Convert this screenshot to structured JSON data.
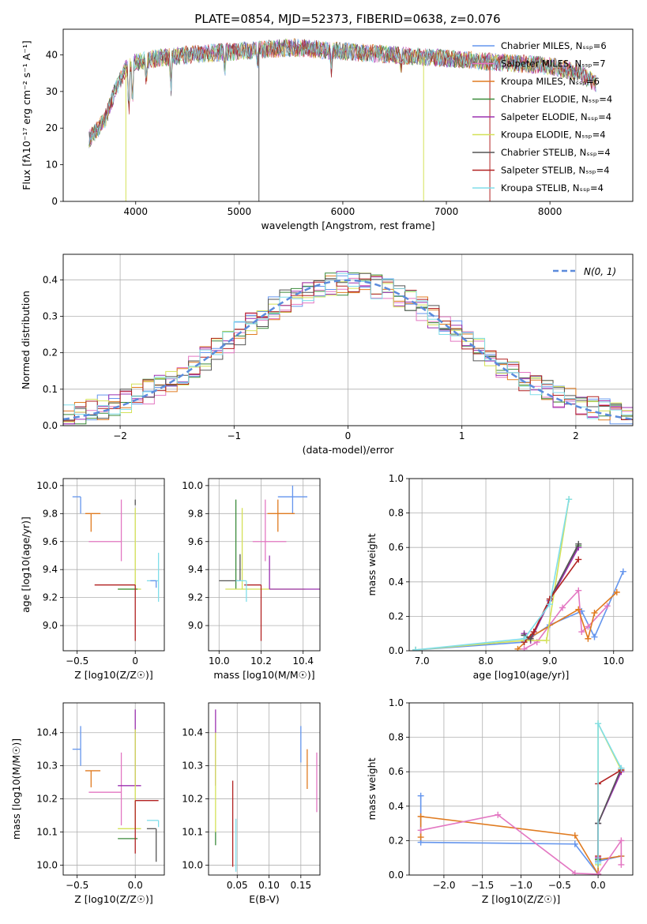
{
  "figure_title": "PLATE=0854, MJD=52373, FIBERID=0638, z=0.076",
  "series_colors": {
    "Chabrier MILES": "#6495ed",
    "Salpeter MILES": "#e377c2",
    "Kroupa MILES": "#e07b20",
    "Chabrier ELODIE": "#3a8a3a",
    "Salpeter ELODIE": "#9b30b0",
    "Kroupa ELODIE": "#d4e157",
    "Chabrier STELIB": "#555555",
    "Salpeter STELIB": "#b22222",
    "Kroupa STELIB": "#80deea"
  },
  "chart_data": [
    {
      "id": "spectrum",
      "type": "line",
      "xlabel": "wavelength [Angstrom, rest frame]",
      "ylabel": "Flux [fλ10⁻¹⁷ erg cm⁻² s⁻¹ A⁻¹]",
      "xlim": [
        3300,
        8800
      ],
      "ylim": [
        0,
        47
      ],
      "xticks": [
        4000,
        5000,
        6000,
        7000,
        8000
      ],
      "yticks": [
        0,
        10,
        20,
        30,
        40
      ],
      "grid": false,
      "legend_position": "top-right",
      "continuum": [
        [
          3550,
          17
        ],
        [
          3700,
          22
        ],
        [
          3800,
          30
        ],
        [
          3900,
          36
        ],
        [
          4000,
          38
        ],
        [
          4200,
          39
        ],
        [
          4500,
          40
        ],
        [
          5000,
          41
        ],
        [
          5500,
          42
        ],
        [
          6000,
          41
        ],
        [
          6500,
          40
        ],
        [
          7000,
          39
        ],
        [
          7500,
          38
        ],
        [
          8000,
          37
        ],
        [
          8300,
          35
        ],
        [
          8450,
          32
        ]
      ],
      "legend": [
        {
          "label": "Chabrier MILES, N_SSP=6",
          "color": "#6495ed"
        },
        {
          "label": "Salpeter MILES, N_SSP=7",
          "color": "#e377c2"
        },
        {
          "label": "Kroupa MILES, N_SSP=6",
          "color": "#e07b20"
        },
        {
          "label": "Chabrier ELODIE, N_SSP=4",
          "color": "#3a8a3a"
        },
        {
          "label": "Salpeter ELODIE, N_SSP=4",
          "color": "#9b30b0"
        },
        {
          "label": "Kroupa ELODIE, N_SSP=4",
          "color": "#d4e157"
        },
        {
          "label": "Chabrier STELIB, N_SSP=4",
          "color": "#555555"
        },
        {
          "label": "Salpeter STELIB, N_SSP=4",
          "color": "#b22222"
        },
        {
          "label": "Kroupa STELIB, N_SSP=4",
          "color": "#80deea"
        }
      ]
    },
    {
      "id": "residual-histogram",
      "type": "line",
      "xlabel": "(data-model)/error",
      "ylabel": "Normed distribution",
      "xlim": [
        -2.5,
        2.5
      ],
      "ylim": [
        0,
        0.47
      ],
      "xticks": [
        -2,
        -1,
        0,
        1,
        2
      ],
      "yticks": [
        0.0,
        0.1,
        0.2,
        0.3,
        0.4
      ],
      "grid": true,
      "legend_position": "top-right",
      "reference_label": "N(0, 1)",
      "reference_color": "#5b8bdc",
      "bin_width": 0.1
    },
    {
      "id": "age-vs-Z",
      "type": "scatter",
      "xlabel": "Z [log10(Z/Z☉)]",
      "ylabel": "age [log10(age/yr)]",
      "xlim": [
        -0.62,
        0.25
      ],
      "ylim": [
        8.82,
        10.05
      ],
      "xticks": [
        -0.5,
        0.0
      ],
      "yticks": [
        9.0,
        9.2,
        9.4,
        9.6,
        9.8,
        10.0
      ],
      "grid": true,
      "points": [
        {
          "series": "Chabrier MILES",
          "x": -0.47,
          "y": 9.92,
          "xerr": [
            0.07,
            0.0
          ],
          "yerr": [
            0.12,
            0.0
          ]
        },
        {
          "series": "Kroupa MILES",
          "x": -0.38,
          "y": 9.8,
          "xerr": [
            0.05,
            0.08
          ],
          "yerr": [
            0.13,
            0.0
          ]
        },
        {
          "series": "Salpeter MILES",
          "x": -0.12,
          "y": 9.6,
          "xerr": [
            0.28,
            0.0
          ],
          "yerr": [
            0.14,
            0.3
          ]
        },
        {
          "series": "Chabrier STELIB",
          "x": 0.0,
          "y": 9.86,
          "xerr": [
            0.0,
            0.0
          ],
          "yerr": [
            0.0,
            0.04
          ]
        },
        {
          "series": "Kroupa ELODIE",
          "x": 0.0,
          "y": 9.26,
          "xerr": [
            0.15,
            0.05
          ],
          "yerr": [
            0.0,
            0.58
          ]
        },
        {
          "series": "Chabrier ELODIE",
          "x": -0.15,
          "y": 9.26,
          "xerr": [
            0.0,
            0.17
          ],
          "yerr": [
            0.0,
            0.0
          ]
        },
        {
          "series": "Salpeter STELIB",
          "x": 0.0,
          "y": 9.29,
          "xerr": [
            0.35,
            0.0
          ],
          "yerr": [
            0.4,
            0.0
          ]
        },
        {
          "series": "Kroupa STELIB",
          "x": 0.2,
          "y": 9.32,
          "xerr": [
            0.1,
            0.0
          ],
          "yerr": [
            0.15,
            0.2
          ]
        },
        {
          "series": "Chabrier MILES",
          "x": 0.18,
          "y": 9.32,
          "xerr": [
            0.05,
            0.0
          ],
          "yerr": [
            0.05,
            0.0
          ]
        }
      ]
    },
    {
      "id": "age-vs-mass",
      "type": "scatter",
      "xlabel": "mass [log10(M/M☉)]",
      "ylabel": "",
      "xlim": [
        9.95,
        10.48
      ],
      "ylim": [
        8.82,
        10.05
      ],
      "xticks": [
        10.0,
        10.2,
        10.4
      ],
      "yticks": [
        9.0,
        9.2,
        9.4,
        9.6,
        9.8,
        10.0
      ],
      "grid": true,
      "points": [
        {
          "series": "Chabrier MILES",
          "x": 10.35,
          "y": 9.92,
          "xerr": [
            0.07,
            0.07
          ],
          "yerr": [
            0.12,
            0.08
          ]
        },
        {
          "series": "Kroupa MILES",
          "x": 10.28,
          "y": 9.8,
          "xerr": [
            0.05,
            0.08
          ],
          "yerr": [
            0.13,
            0.1
          ]
        },
        {
          "series": "Salpeter MILES",
          "x": 10.22,
          "y": 9.6,
          "xerr": [
            0.06,
            0.1
          ],
          "yerr": [
            0.14,
            0.3
          ]
        },
        {
          "series": "Chabrier ELODIE",
          "x": 10.08,
          "y": 9.26,
          "xerr": [
            0.0,
            0.0
          ],
          "yerr": [
            0.0,
            0.64
          ]
        },
        {
          "series": "Kroupa ELODIE",
          "x": 10.11,
          "y": 9.26,
          "xerr": [
            0.08,
            0.3
          ],
          "yerr": [
            0.0,
            0.58
          ]
        },
        {
          "series": "Chabrier STELIB",
          "x": 10.1,
          "y": 9.32,
          "xerr": [
            0.1,
            0.0
          ],
          "yerr": [
            0.0,
            0.19
          ]
        },
        {
          "series": "Salpeter STELIB",
          "x": 10.2,
          "y": 9.29,
          "xerr": [
            0.08,
            0.0
          ],
          "yerr": [
            0.4,
            0.0
          ]
        },
        {
          "series": "Kroupa STELIB",
          "x": 10.13,
          "y": 9.32,
          "xerr": [
            0.05,
            0.0
          ],
          "yerr": [
            0.15,
            0.0
          ]
        },
        {
          "series": "Salpeter ELODIE",
          "x": 10.24,
          "y": 9.26,
          "xerr": [
            0.0,
            0.24
          ],
          "yerr": [
            0.0,
            0.24
          ]
        }
      ]
    },
    {
      "id": "mass-weight-vs-age",
      "type": "line",
      "xlabel": "age [log10(age/yr)]",
      "ylabel": "mass weight",
      "xlim": [
        6.8,
        10.3
      ],
      "ylim": [
        0,
        1.0
      ],
      "xticks": [
        7,
        8,
        9,
        10
      ],
      "yticks": [
        0.0,
        0.2,
        0.4,
        0.6,
        0.8,
        1.0
      ],
      "grid": true,
      "series": [
        {
          "name": "Chabrier MILES",
          "x": [
            6.9,
            8.6,
            9.0,
            9.5,
            9.7,
            10.15
          ],
          "y": [
            0.005,
            0.05,
            0.15,
            0.23,
            0.08,
            0.46
          ]
        },
        {
          "name": "Salpeter MILES",
          "x": [
            8.6,
            8.8,
            9.2,
            9.45,
            9.5,
            9.6,
            9.9
          ],
          "y": [
            0.01,
            0.05,
            0.25,
            0.35,
            0.11,
            0.14,
            0.26
          ]
        },
        {
          "name": "Kroupa MILES",
          "x": [
            8.5,
            8.7,
            9.45,
            9.6,
            9.7,
            10.05
          ],
          "y": [
            0.01,
            0.08,
            0.24,
            0.07,
            0.22,
            0.34
          ]
        },
        {
          "name": "Chabrier ELODIE",
          "x": [
            8.6,
            8.7,
            9.0,
            9.45
          ],
          "y": [
            0.09,
            0.06,
            0.29,
            0.61
          ]
        },
        {
          "name": "Salpeter ELODIE",
          "x": [
            8.6,
            8.7,
            9.0,
            9.45
          ],
          "y": [
            0.1,
            0.06,
            0.29,
            0.6
          ]
        },
        {
          "name": "Kroupa ELODIE",
          "x": [
            6.9,
            8.6,
            8.95,
            9.3
          ],
          "y": [
            0.005,
            0.06,
            0.06,
            0.88
          ]
        },
        {
          "name": "Chabrier STELIB",
          "x": [
            8.6,
            8.7,
            9.0,
            9.45
          ],
          "y": [
            0.09,
            0.07,
            0.3,
            0.62
          ]
        },
        {
          "name": "Salpeter STELIB",
          "x": [
            8.6,
            8.75,
            9.0,
            9.45
          ],
          "y": [
            0.05,
            0.11,
            0.3,
            0.53
          ]
        },
        {
          "name": "Kroupa STELIB",
          "x": [
            6.9,
            8.6,
            9.0,
            9.3
          ],
          "y": [
            0.005,
            0.07,
            0.27,
            0.88
          ]
        }
      ]
    },
    {
      "id": "mass-vs-Z",
      "type": "scatter",
      "xlabel": "Z [log10(Z/Z☉)]",
      "ylabel": "mass [log10(M/M☉)]",
      "xlim": [
        -0.62,
        0.25
      ],
      "ylim": [
        9.97,
        10.49
      ],
      "xticks": [
        -0.5,
        0.0
      ],
      "yticks": [
        10.0,
        10.1,
        10.2,
        10.3,
        10.4
      ],
      "grid": true,
      "points": [
        {
          "series": "Chabrier MILES",
          "x": -0.47,
          "y": 10.35,
          "xerr": [
            0.07,
            0.0
          ],
          "yerr": [
            0.05,
            0.07
          ]
        },
        {
          "series": "Kroupa MILES",
          "x": -0.38,
          "y": 10.285,
          "xerr": [
            0.05,
            0.08
          ],
          "yerr": [
            0.05,
            0.0
          ]
        },
        {
          "series": "Salpeter MILES",
          "x": -0.12,
          "y": 10.22,
          "xerr": [
            0.28,
            0.0
          ],
          "yerr": [
            0.1,
            0.12
          ]
        },
        {
          "series": "Salpeter ELODIE",
          "x": 0.0,
          "y": 10.24,
          "xerr": [
            0.15,
            0.05
          ],
          "yerr": [
            0.0,
            0.23
          ]
        },
        {
          "series": "Kroupa ELODIE",
          "x": 0.0,
          "y": 10.11,
          "xerr": [
            0.15,
            0.05
          ],
          "yerr": [
            0.0,
            0.3
          ]
        },
        {
          "series": "Chabrier ELODIE",
          "x": -0.15,
          "y": 10.08,
          "xerr": [
            0.0,
            0.17
          ],
          "yerr": [
            0.0,
            0.0
          ]
        },
        {
          "series": "Salpeter STELIB",
          "x": 0.0,
          "y": 10.195,
          "xerr": [
            0.0,
            0.2
          ],
          "yerr": [
            0.16,
            0.0
          ]
        },
        {
          "series": "Kroupa STELIB",
          "x": 0.2,
          "y": 10.135,
          "xerr": [
            0.1,
            0.0
          ],
          "yerr": [
            0.02,
            0.0
          ]
        },
        {
          "series": "Chabrier STELIB",
          "x": 0.18,
          "y": 10.11,
          "xerr": [
            0.08,
            0.0
          ],
          "yerr": [
            0.1,
            0.0
          ]
        }
      ]
    },
    {
      "id": "mass-vs-ebv",
      "type": "scatter",
      "xlabel": "E(B-V)",
      "ylabel": "",
      "xlim": [
        0.005,
        0.18
      ],
      "ylim": [
        9.97,
        10.49
      ],
      "xticks": [
        0.05,
        0.1,
        0.15
      ],
      "yticks": [
        10.0,
        10.1,
        10.2,
        10.3,
        10.4
      ],
      "grid": true,
      "points": [
        {
          "series": "Salpeter ELODIE",
          "x": 0.016,
          "y": 10.24,
          "xerr": [
            0.0,
            0.0
          ],
          "yerr": [
            0.0,
            0.23
          ]
        },
        {
          "series": "Kroupa ELODIE",
          "x": 0.016,
          "y": 10.2,
          "xerr": [
            0.0,
            0.0
          ],
          "yerr": [
            0.1,
            0.2
          ]
        },
        {
          "series": "Chabrier ELODIE",
          "x": 0.016,
          "y": 10.1,
          "xerr": [
            0.0,
            0.0
          ],
          "yerr": [
            0.04,
            0.0
          ]
        },
        {
          "series": "Salpeter STELIB",
          "x": 0.043,
          "y": 10.135,
          "xerr": [
            0.0,
            0.0
          ],
          "yerr": [
            0.14,
            0.12
          ]
        },
        {
          "series": "Kroupa STELIB",
          "x": 0.048,
          "y": 10.1,
          "xerr": [
            0.0,
            0.0
          ],
          "yerr": [
            0.12,
            0.04
          ]
        },
        {
          "series": "Chabrier MILES",
          "x": 0.15,
          "y": 10.35,
          "xerr": [
            0.0,
            0.0
          ],
          "yerr": [
            0.04,
            0.07
          ]
        },
        {
          "series": "Kroupa MILES",
          "x": 0.16,
          "y": 10.28,
          "xerr": [
            0.0,
            0.0
          ],
          "yerr": [
            0.05,
            0.07
          ]
        },
        {
          "series": "Salpeter MILES",
          "x": 0.175,
          "y": 10.22,
          "xerr": [
            0.0,
            0.0
          ],
          "yerr": [
            0.06,
            0.12
          ]
        }
      ]
    },
    {
      "id": "mass-weight-vs-Z",
      "type": "line",
      "xlabel": "Z [log10(Z/Z☉)]",
      "ylabel": "mass weight",
      "xlim": [
        -2.45,
        0.45
      ],
      "ylim": [
        0,
        1.0
      ],
      "xticks": [
        -2.0,
        -1.5,
        -1.0,
        -0.5,
        0.0
      ],
      "yticks": [
        0.0,
        0.2,
        0.4,
        0.6,
        0.8,
        1.0
      ],
      "grid": true,
      "series": [
        {
          "name": "Chabrier MILES",
          "x": [
            -2.3,
            -2.3,
            -0.3,
            0.0,
            0.0,
            0.3
          ],
          "y": [
            0.46,
            0.19,
            0.18,
            0.005,
            0.08,
            0.11
          ]
        },
        {
          "name": "Kroupa MILES",
          "x": [
            -2.3,
            -2.3,
            -0.3,
            0.0,
            0.0,
            0.3
          ],
          "y": [
            0.22,
            0.34,
            0.23,
            0.005,
            0.09,
            0.11
          ]
        },
        {
          "name": "Salpeter MILES",
          "x": [
            -2.3,
            -1.3,
            -0.3,
            0.0,
            0.3,
            0.3
          ],
          "y": [
            0.26,
            0.35,
            0.01,
            0.005,
            0.2,
            0.06
          ]
        },
        {
          "name": "Chabrier ELODIE",
          "x": [
            0.0,
            0.0,
            0.3
          ],
          "y": [
            0.09,
            0.3,
            0.61
          ]
        },
        {
          "name": "Salpeter ELODIE",
          "x": [
            0.0,
            0.0,
            0.3
          ],
          "y": [
            0.1,
            0.3,
            0.6
          ]
        },
        {
          "name": "Kroupa ELODIE",
          "x": [
            0.0,
            0.0,
            0.3
          ],
          "y": [
            0.06,
            0.88,
            0.61
          ]
        },
        {
          "name": "Chabrier STELIB",
          "x": [
            0.0,
            0.0,
            0.3
          ],
          "y": [
            0.07,
            0.3,
            0.62
          ]
        },
        {
          "name": "Salpeter STELIB",
          "x": [
            0.0,
            0.0,
            0.3
          ],
          "y": [
            0.11,
            0.53,
            0.61
          ]
        },
        {
          "name": "Kroupa STELIB",
          "x": [
            0.0,
            0.0,
            0.3
          ],
          "y": [
            0.07,
            0.88,
            0.62
          ]
        }
      ]
    }
  ]
}
